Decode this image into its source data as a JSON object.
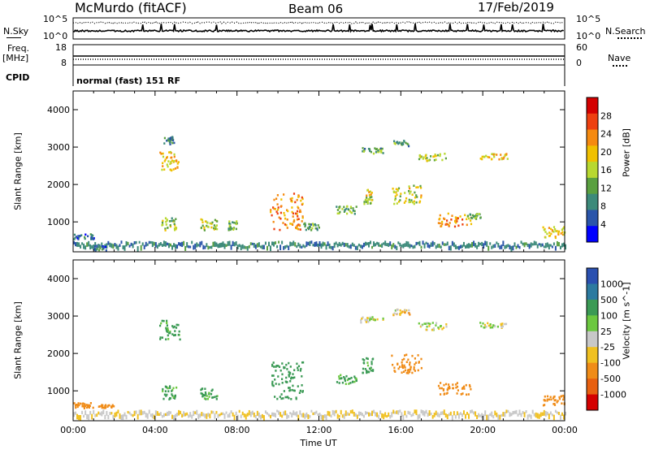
{
  "header": {
    "station": "McMurdo (fitACF)",
    "beam": "Beam 06",
    "date": "17/Feb/2019"
  },
  "top_panel": {
    "nsky_label": "N.Sky",
    "nsearch_label": "N.Search",
    "tick_hi": "10^5",
    "tick_lo": "10^0",
    "freq_label_1": "Freq.",
    "freq_label_2": "[MHz]",
    "freq_ticks": [
      "18",
      "8"
    ],
    "nave_label": "Nave",
    "nave_ticks": [
      "60",
      "0"
    ],
    "cpid_label": "CPID",
    "cpid_value": "normal (fast) 151 RF"
  },
  "colors": {
    "axis": "#000000",
    "series": "#000000"
  },
  "chart_data": [
    {
      "type": "heatmap",
      "title": "",
      "ylabel": "Slant Range [km]",
      "xlabel": "",
      "ylim": [
        200,
        4500
      ],
      "yticks": [
        "1000",
        "2000",
        "3000",
        "4000"
      ],
      "colorbar_label": "Power [dB]",
      "colorbar_ticks": [
        "28",
        "24",
        "20",
        "16",
        "12",
        "8",
        "4"
      ],
      "colorbar_colors": [
        "#d40000",
        "#ee4010",
        "#f58a10",
        "#f0c000",
        "#b8d830",
        "#5aa040",
        "#3c8a7a",
        "#2a55aa",
        "#0000ff"
      ],
      "features": [
        {
          "t0": 0.0,
          "t1": 1.0,
          "r0": 560,
          "r1": 700,
          "value": 6
        },
        {
          "t0": 1.0,
          "t1": 1.6,
          "r0": 250,
          "r1": 400,
          "value": 6
        },
        {
          "t0": 4.2,
          "t1": 5.2,
          "r0": 2400,
          "r1": 2900,
          "value": 18
        },
        {
          "t0": 4.4,
          "t1": 4.9,
          "r0": 3100,
          "r1": 3300,
          "value": 8
        },
        {
          "t0": 4.3,
          "t1": 5.0,
          "r0": 800,
          "r1": 1150,
          "value": 14
        },
        {
          "t0": 6.2,
          "t1": 7.0,
          "r0": 800,
          "r1": 1100,
          "value": 14
        },
        {
          "t0": 7.5,
          "t1": 8.0,
          "r0": 800,
          "r1": 1050,
          "value": 12
        },
        {
          "t0": 9.6,
          "t1": 11.2,
          "r0": 800,
          "r1": 1800,
          "value": 22
        },
        {
          "t0": 11.2,
          "t1": 12.0,
          "r0": 800,
          "r1": 1000,
          "value": 10
        },
        {
          "t0": 12.8,
          "t1": 13.8,
          "r0": 1200,
          "r1": 1450,
          "value": 12
        },
        {
          "t0": 14.1,
          "t1": 14.6,
          "r0": 1500,
          "r1": 1900,
          "value": 16
        },
        {
          "t0": 15.5,
          "t1": 17.0,
          "r0": 1500,
          "r1": 2000,
          "value": 16
        },
        {
          "t0": 17.8,
          "t1": 19.4,
          "r0": 900,
          "r1": 1250,
          "value": 22
        },
        {
          "t0": 19.2,
          "t1": 19.9,
          "r0": 1100,
          "r1": 1250,
          "value": 10
        },
        {
          "t0": 14.0,
          "t1": 15.1,
          "r0": 2850,
          "r1": 3000,
          "value": 10
        },
        {
          "t0": 15.6,
          "t1": 16.4,
          "r0": 3050,
          "r1": 3200,
          "value": 10
        },
        {
          "t0": 16.8,
          "t1": 18.2,
          "r0": 2650,
          "r1": 2850,
          "value": 16
        },
        {
          "t0": 19.8,
          "t1": 21.2,
          "r0": 2700,
          "r1": 2850,
          "value": 18
        },
        {
          "t0": 22.9,
          "t1": 24.0,
          "r0": 600,
          "r1": 900,
          "value": 18
        }
      ]
    },
    {
      "type": "heatmap",
      "title": "",
      "ylabel": "Slant Range [km]",
      "xlabel": "Time UT",
      "ylim": [
        200,
        4500
      ],
      "yticks": [
        "1000",
        "2000",
        "3000",
        "4000"
      ],
      "xticks": [
        "00:00",
        "04:00",
        "08:00",
        "12:00",
        "16:00",
        "20:00",
        "00:00"
      ],
      "colorbar_label": "Velocity [m s^-1]",
      "colorbar_ticks": [
        "1000",
        "500",
        "100",
        "25",
        "-25",
        "-100",
        "-500",
        "-1000"
      ],
      "colorbar_colors": [
        "#2a50b0",
        "#2c7aa0",
        "#3b9a55",
        "#6cc840",
        "#c8c8c8",
        "#f0c020",
        "#f08c18",
        "#e86010",
        "#d40000"
      ],
      "features": [
        {
          "t0": 0.0,
          "t1": 1.0,
          "r0": 560,
          "r1": 700,
          "value": -300
        },
        {
          "t0": 1.2,
          "t1": 2.0,
          "r0": 560,
          "r1": 650,
          "value": -300
        },
        {
          "t0": 4.2,
          "t1": 5.2,
          "r0": 2400,
          "r1": 2900,
          "value": 150
        },
        {
          "t0": 4.3,
          "t1": 5.0,
          "r0": 800,
          "r1": 1150,
          "value": 150
        },
        {
          "t0": 6.2,
          "t1": 7.0,
          "r0": 800,
          "r1": 1100,
          "value": 150
        },
        {
          "t0": 9.6,
          "t1": 11.2,
          "r0": 800,
          "r1": 1800,
          "value": 300
        },
        {
          "t0": 12.8,
          "t1": 13.8,
          "r0": 1200,
          "r1": 1450,
          "value": 150
        },
        {
          "t0": 14.1,
          "t1": 14.6,
          "r0": 1500,
          "r1": 1900,
          "value": 150
        },
        {
          "t0": 15.5,
          "t1": 17.0,
          "r0": 1500,
          "r1": 2000,
          "value": -300
        },
        {
          "t0": 17.8,
          "t1": 19.4,
          "r0": 900,
          "r1": 1250,
          "value": -300
        },
        {
          "t0": 14.0,
          "t1": 15.1,
          "r0": 2850,
          "r1": 3000,
          "value": 0
        },
        {
          "t0": 15.6,
          "t1": 16.4,
          "r0": 3050,
          "r1": 3200,
          "value": -50
        },
        {
          "t0": 16.8,
          "t1": 18.2,
          "r0": 2650,
          "r1": 2850,
          "value": 0
        },
        {
          "t0": 19.8,
          "t1": 21.2,
          "r0": 2700,
          "r1": 2850,
          "value": 0
        },
        {
          "t0": 22.9,
          "t1": 24.0,
          "r0": 600,
          "r1": 900,
          "value": -300
        }
      ]
    }
  ]
}
